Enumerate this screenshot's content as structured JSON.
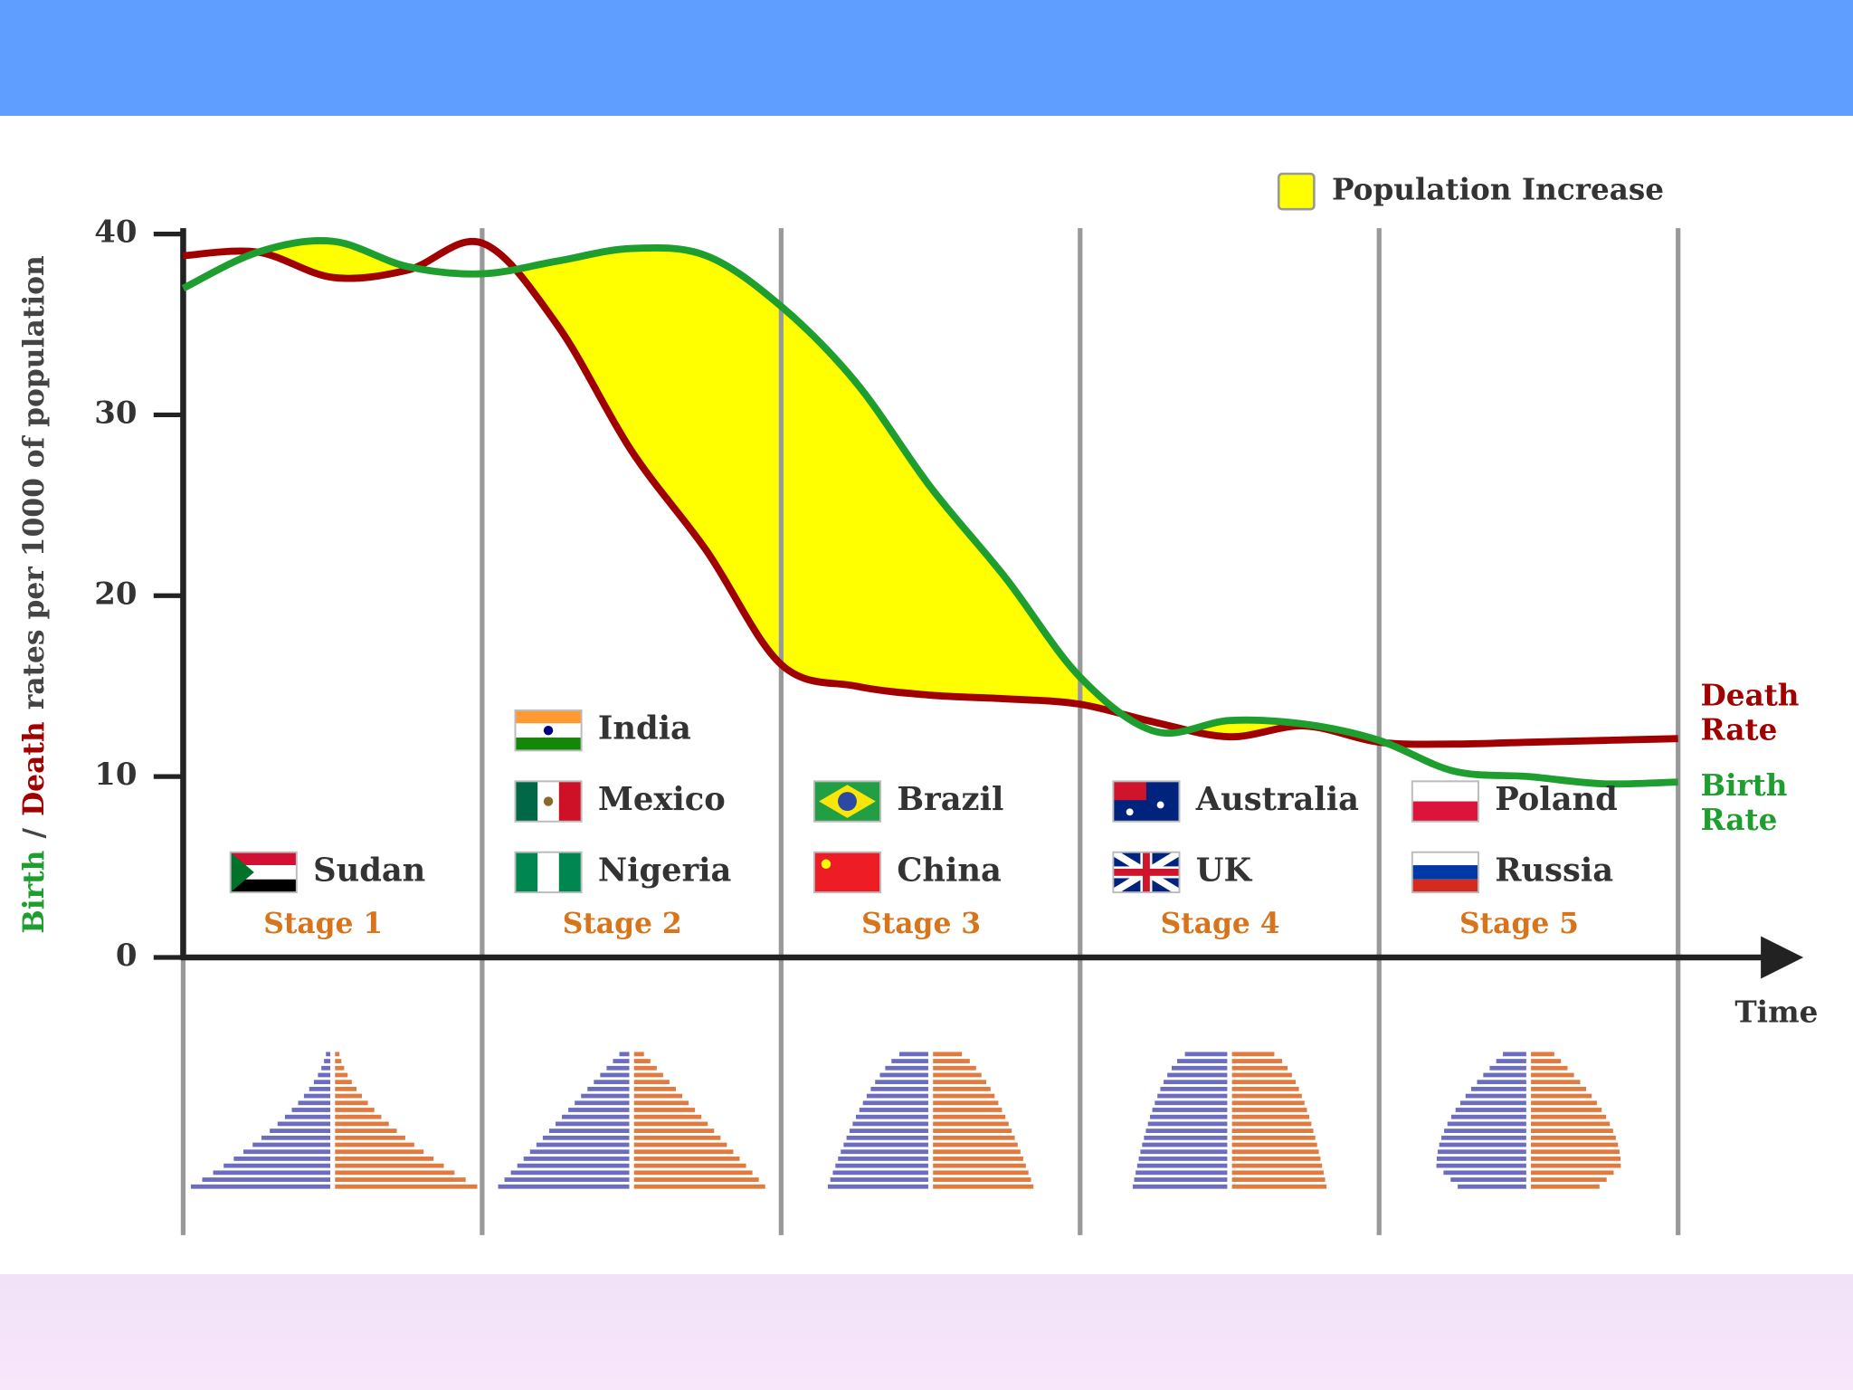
{
  "chart_data": {
    "type": "line",
    "legend": {
      "label": "Population Increase",
      "color": "#ffff00"
    },
    "ylabel": {
      "birth": "Birth",
      "separator": "/",
      "death": "Death",
      "rest": "rates per 1000 of population"
    },
    "xlabel": "Time",
    "xlim": [
      0,
      5
    ],
    "ylim": [
      0,
      40
    ],
    "yticks": [
      0,
      10,
      20,
      30,
      40
    ],
    "x": [
      0,
      0.25,
      0.5,
      0.75,
      1,
      1.25,
      1.5,
      1.75,
      2,
      2.25,
      2.5,
      2.75,
      3,
      3.25,
      3.5,
      3.75,
      4,
      4.25,
      4.5,
      4.75,
      5
    ],
    "series": [
      {
        "name": "Death Rate",
        "color": "#a00000",
        "values": [
          38.8,
          39.0,
          37.6,
          38.0,
          39.5,
          35.0,
          28.0,
          22.5,
          16.2,
          15.0,
          14.5,
          14.3,
          14.0,
          13.0,
          12.2,
          12.8,
          11.9,
          11.8,
          11.9,
          12.0,
          12.1
        ]
      },
      {
        "name": "Birth Rate",
        "color": "#1e9e2e",
        "values": [
          37.0,
          39.0,
          39.6,
          38.2,
          37.8,
          38.5,
          39.2,
          38.8,
          36.0,
          31.8,
          26.0,
          21.0,
          15.5,
          12.5,
          13.1,
          12.9,
          12.0,
          10.3,
          10.0,
          9.6,
          9.7
        ]
      }
    ],
    "stages": [
      {
        "label": "Stage 1",
        "countries": [
          "Sudan"
        ]
      },
      {
        "label": "Stage 2",
        "countries": [
          "India",
          "Mexico",
          "Nigeria"
        ]
      },
      {
        "label": "Stage 3",
        "countries": [
          "Brazil",
          "China"
        ]
      },
      {
        "label": "Stage 4",
        "countries": [
          "Australia",
          "UK"
        ]
      },
      {
        "label": "Stage 5",
        "countries": [
          "Poland",
          "Russia"
        ]
      }
    ]
  }
}
